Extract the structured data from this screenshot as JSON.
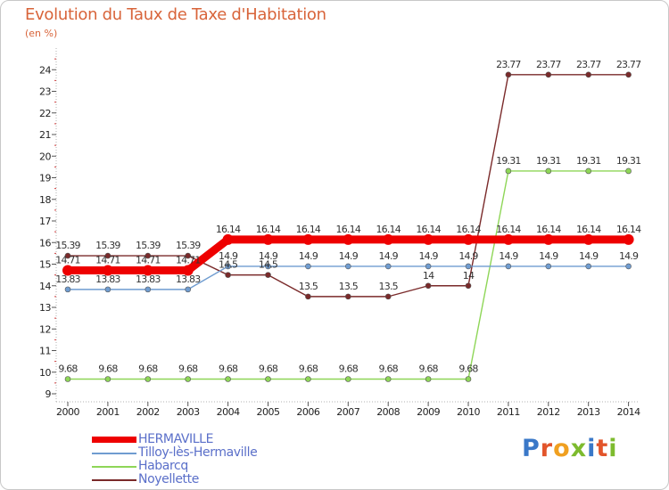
{
  "header": {
    "title": "Evolution du Taux de Taxe d'Habitation",
    "subtitle": "(en %)"
  },
  "brand": {
    "logo_text": "Proxiti",
    "letter_colors": [
      "#3a78c8",
      "#e2552b",
      "#f0a020",
      "#7dbb2e",
      "#3a78c8",
      "#e2552b",
      "#7dbb2e"
    ]
  },
  "chart_data": {
    "type": "line",
    "title": "Evolution du Taux de Taxe d'Habitation",
    "ylabel": "(en %)",
    "xlabel": "",
    "x": [
      "2000",
      "2001",
      "2002",
      "2003",
      "2004",
      "2005",
      "2006",
      "2007",
      "2008",
      "2009",
      "2010",
      "2011",
      "2012",
      "2013",
      "2014"
    ],
    "yticks": [
      9,
      10,
      11,
      12,
      13,
      14,
      15,
      16,
      17,
      18,
      19,
      20,
      21,
      22,
      23,
      24
    ],
    "ylim": [
      9,
      24.5
    ],
    "grid": false,
    "legend_position": "bottom-left",
    "series": [
      {
        "name": "Noyellette",
        "color": "#7a2a2a",
        "values": [
          15.39,
          15.39,
          15.39,
          15.39,
          14.5,
          14.5,
          13.5,
          13.5,
          13.5,
          14,
          14,
          23.77,
          23.77,
          23.77,
          23.77
        ],
        "labels": [
          "15.39",
          "15.39",
          "15.39",
          "15.39",
          "14.5",
          "14.5",
          "13.5",
          "13.5",
          "13.5",
          "14",
          "14",
          "23.77",
          "23.77",
          "23.77",
          "23.77"
        ]
      },
      {
        "name": "Habarcq",
        "color": "#8ed657",
        "values": [
          9.68,
          9.68,
          9.68,
          9.68,
          9.68,
          9.68,
          9.68,
          9.68,
          9.68,
          9.68,
          9.68,
          19.31,
          19.31,
          19.31,
          19.31
        ],
        "labels": [
          "9.68",
          "9.68",
          "9.68",
          "9.68",
          "9.68",
          "9.68",
          "9.68",
          "9.68",
          "9.68",
          "9.68",
          "9.68",
          "19.31",
          "19.31",
          "19.31",
          "19.31"
        ]
      },
      {
        "name": "Tilloy-lès-Hermaville",
        "color": "#6f9cd0",
        "values": [
          13.83,
          13.83,
          13.83,
          13.83,
          14.9,
          14.9,
          14.9,
          14.9,
          14.9,
          14.9,
          14.9,
          14.9,
          14.9,
          14.9,
          14.9
        ],
        "labels": [
          "13.83",
          "13.83",
          "13.83",
          "13.83",
          "14.9",
          "14.9",
          "14.9",
          "14.9",
          "14.9",
          "14.9",
          "14.9",
          "14.9",
          "14.9",
          "14.9",
          "14.9"
        ]
      },
      {
        "name": "HERMAVILLE",
        "color": "#ee0000",
        "values": [
          14.71,
          14.71,
          14.71,
          14.71,
          16.14,
          16.14,
          16.14,
          16.14,
          16.14,
          16.14,
          16.14,
          16.14,
          16.14,
          16.14,
          16.14
        ],
        "labels": [
          "14.71",
          "14.71",
          "14.71",
          "14.71",
          "16.14",
          "16.14",
          "16.14",
          "16.14",
          "16.14",
          "16.14",
          "16.14",
          "16.14",
          "16.14",
          "16.14",
          "16.14"
        ]
      }
    ]
  },
  "legend": {
    "items": [
      {
        "label": "HERMAVILLE",
        "color": "#ee0000",
        "thick": true
      },
      {
        "label": "Tilloy-lès-Hermaville",
        "color": "#6f9cd0",
        "thick": false
      },
      {
        "label": "Habarcq",
        "color": "#8ed657",
        "thick": false
      },
      {
        "label": "Noyellette",
        "color": "#7a2a2a",
        "thick": false
      }
    ]
  }
}
